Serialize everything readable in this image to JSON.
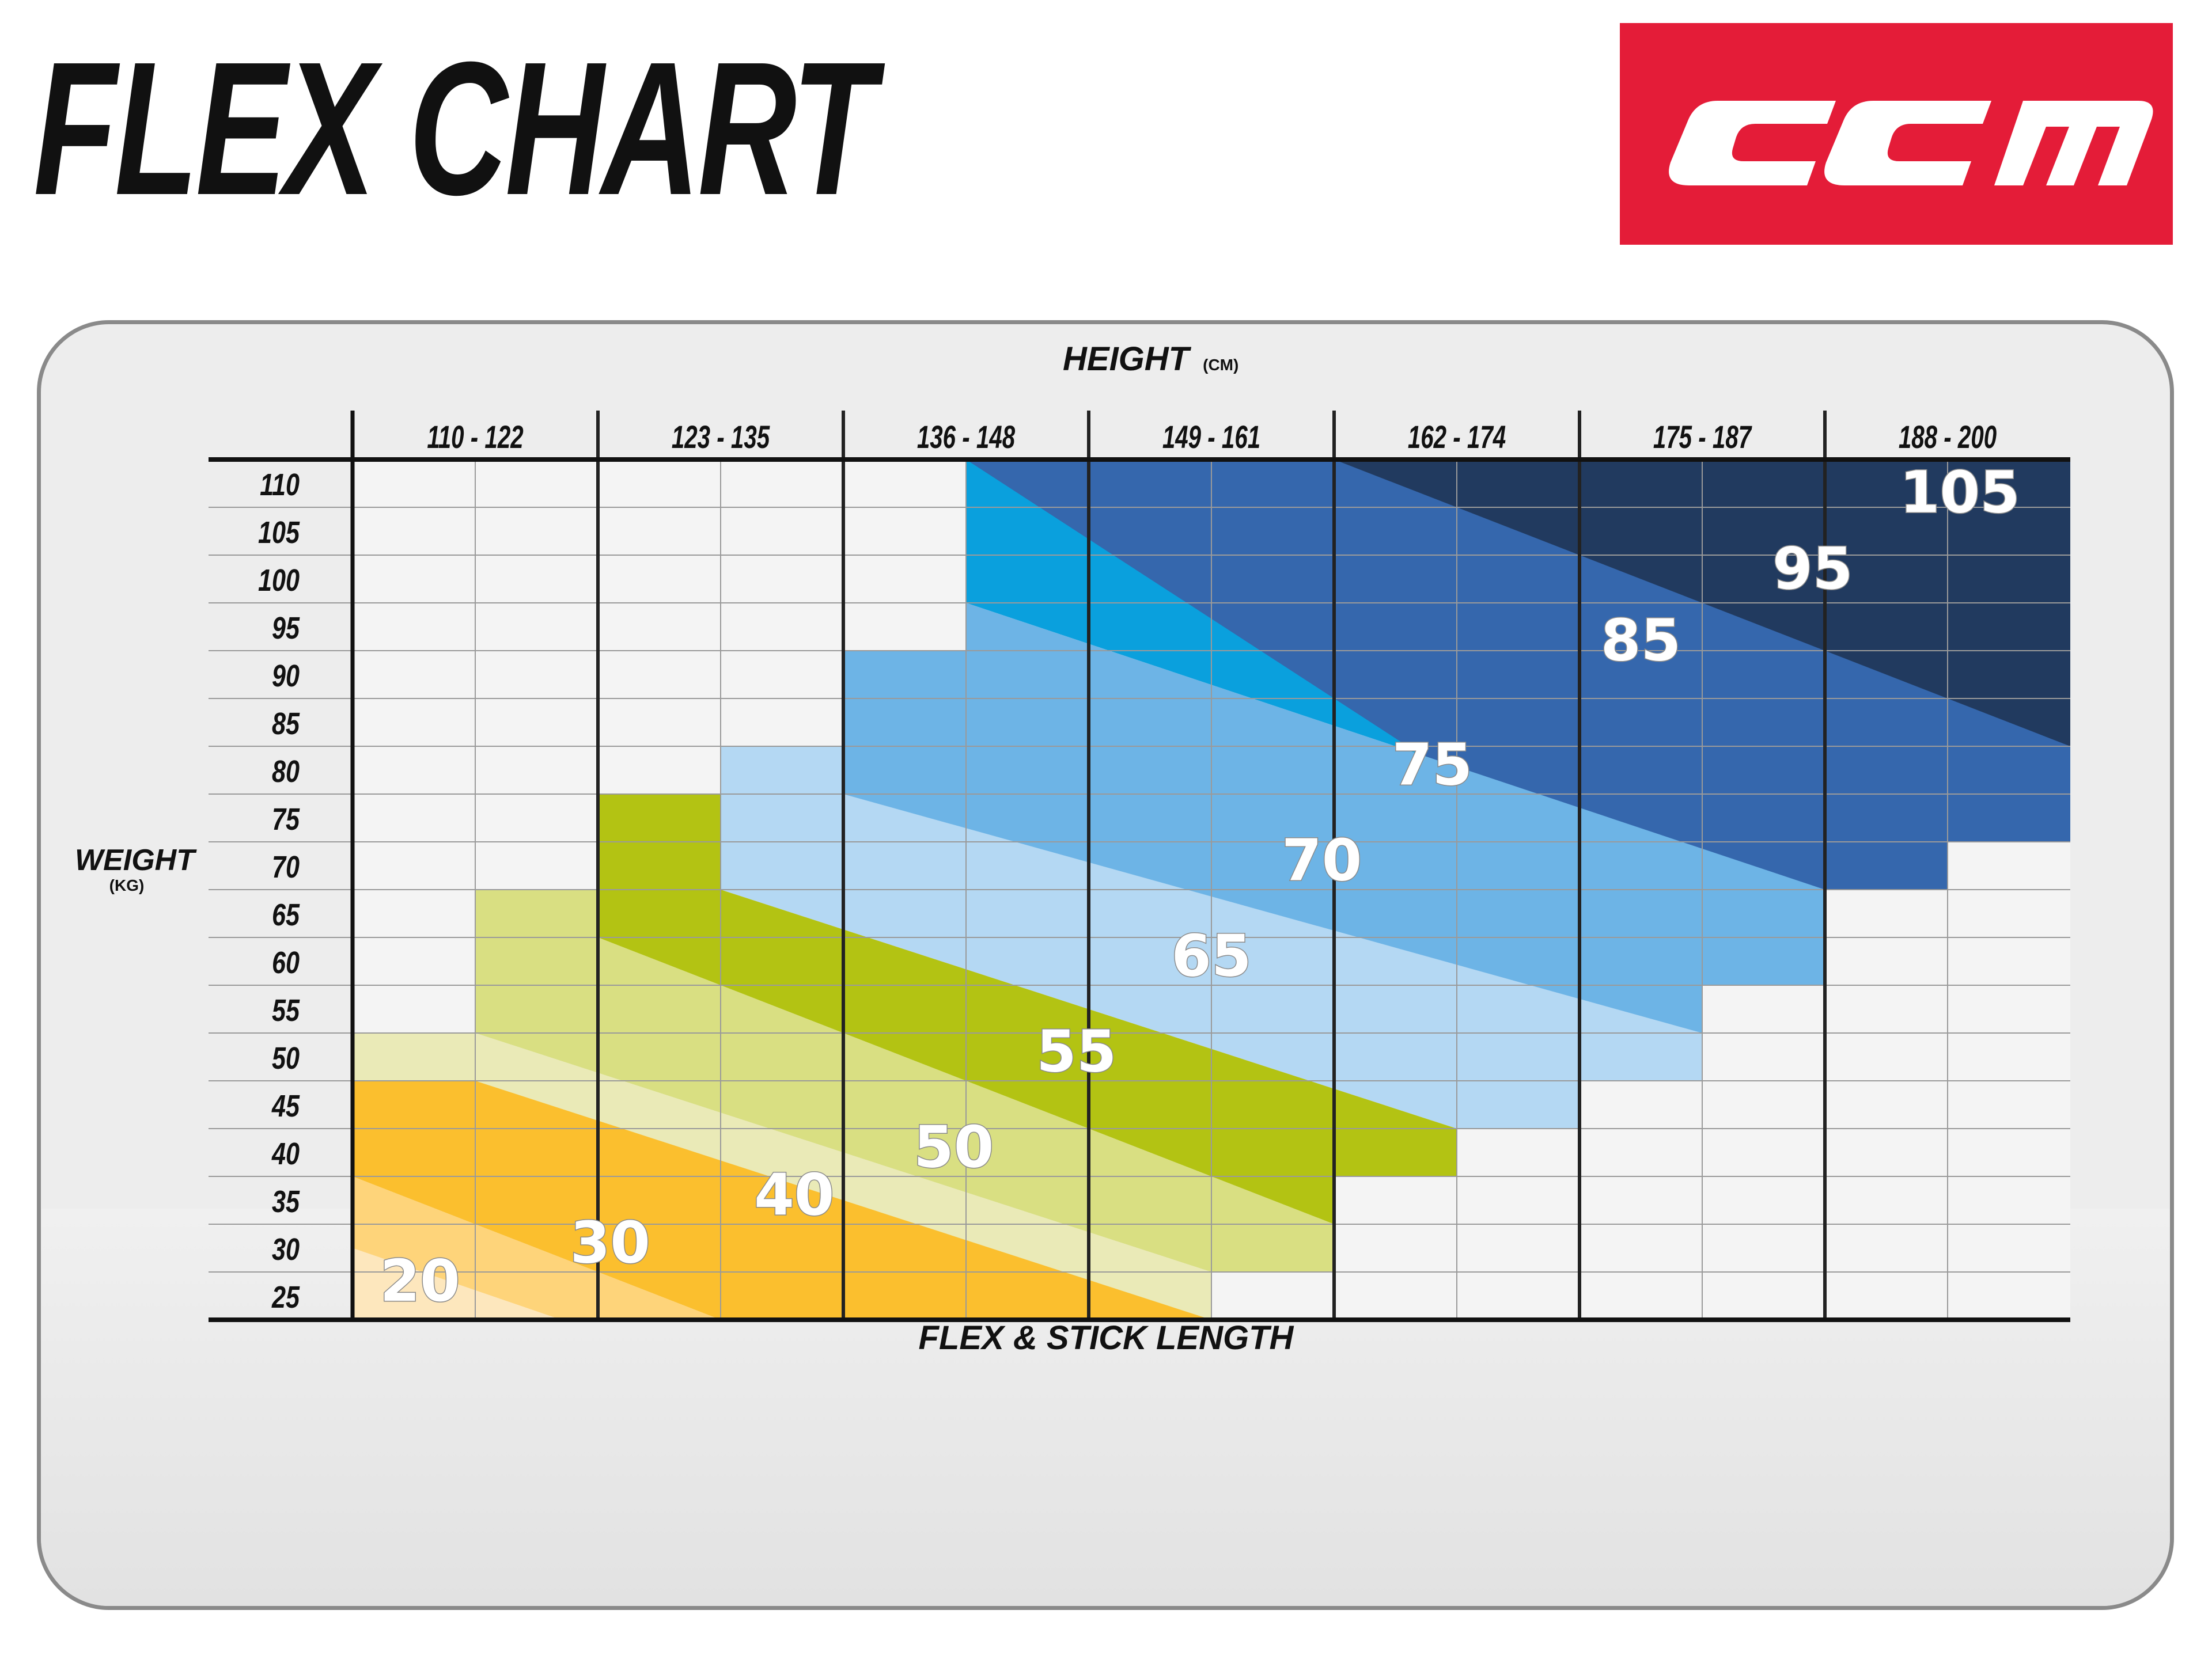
{
  "title": "FLEX CHART",
  "logo_text": "CCM",
  "colors": {
    "brand_red": "#e41c38"
  },
  "chart_data": {
    "type": "heatmap",
    "xlabel": "HEIGHT",
    "xlabel_unit": "(CM)",
    "ylabel": "WEIGHT",
    "ylabel_unit": "(KG)",
    "bottom_label": "FLEX & STICK LENGTH",
    "height_ranges_cm": [
      "110 - 122",
      "123 - 135",
      "136 - 148",
      "149 - 161",
      "162 - 174",
      "175 - 187",
      "188 - 200"
    ],
    "weight_ticks_kg": [
      "110",
      "105",
      "100",
      "95",
      "90",
      "85",
      "80",
      "75",
      "70",
      "65",
      "60",
      "55",
      "50",
      "45",
      "40",
      "35",
      "30",
      "25"
    ],
    "flex_bands": [
      {
        "flex": "20",
        "color": "#fde7bd"
      },
      {
        "flex": "30",
        "color": "#fed47a"
      },
      {
        "flex": "40",
        "color": "#fbbf2e"
      },
      {
        "flex": "50",
        "color": "#eaeab7"
      },
      {
        "flex": "55",
        "color": "#d9df82"
      },
      {
        "flex": "65",
        "color": "#b3c313"
      },
      {
        "flex": "70",
        "color": "#b4d8f3"
      },
      {
        "flex": "75",
        "color": "#6db4e6"
      },
      {
        "flex": "85",
        "color": "#0aa0dd"
      },
      {
        "flex": "95",
        "color": "#3567ad"
      },
      {
        "flex": "105",
        "color": "#213a5f"
      }
    ]
  }
}
